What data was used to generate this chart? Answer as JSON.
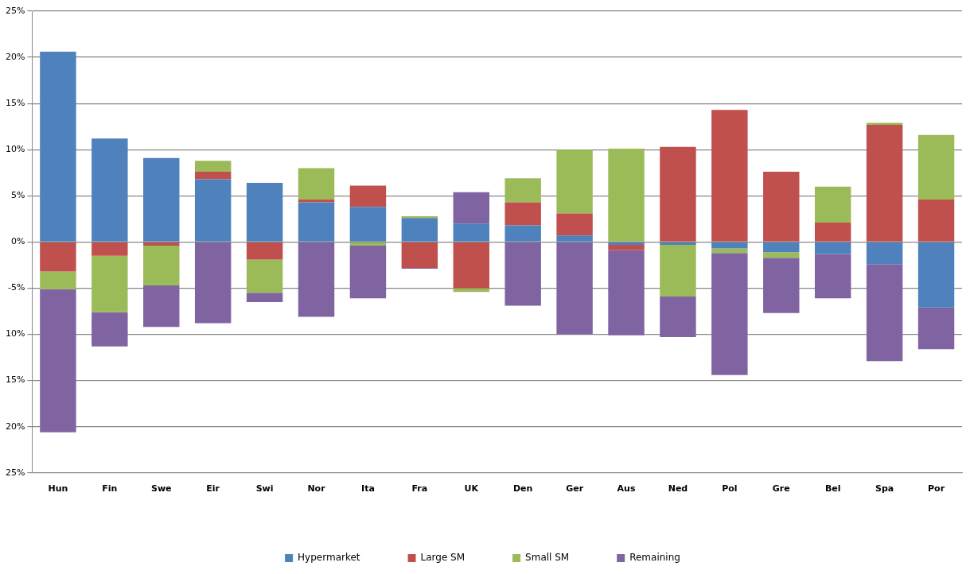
{
  "chart_data": {
    "type": "bar",
    "stacked": true,
    "categories": [
      "Hun",
      "Fin",
      "Swe",
      "Eir",
      "Swi",
      "Nor",
      "Ita",
      "Fra",
      "UK",
      "Den",
      "Ger",
      "Aus",
      "Ned",
      "Pol",
      "Gre",
      "Bel",
      "Spa",
      "Por"
    ],
    "series": [
      {
        "name": "Hypermarket",
        "color": "#4f81bd",
        "values": [
          20.6,
          11.2,
          9.1,
          6.8,
          6.4,
          4.3,
          3.8,
          2.6,
          2.0,
          1.8,
          0.7,
          -0.3,
          -0.3,
          -0.7,
          -1.1,
          -1.3,
          -2.4,
          -7.1
        ]
      },
      {
        "name": "Large SM",
        "color": "#c0504d",
        "values": [
          -3.2,
          -1.5,
          -0.4,
          0.8,
          -1.9,
          0.3,
          2.3,
          -2.8,
          -5.0,
          2.5,
          2.4,
          -0.6,
          10.3,
          14.3,
          7.6,
          2.1,
          12.7,
          4.6
        ]
      },
      {
        "name": "Small SM",
        "color": "#9bbb59",
        "values": [
          -1.9,
          -6.1,
          -4.3,
          1.2,
          -3.6,
          3.4,
          -0.4,
          0.2,
          -0.4,
          2.6,
          6.9,
          10.1,
          -5.6,
          -0.5,
          -0.6,
          3.9,
          0.2,
          7.0
        ]
      },
      {
        "name": "Remaining",
        "color": "#8064a2",
        "values": [
          -15.5,
          -3.7,
          -4.5,
          -8.8,
          -1.0,
          -8.1,
          -5.7,
          -0.1,
          3.4,
          -6.9,
          -10.0,
          -9.2,
          -4.4,
          -13.2,
          -6.0,
          -4.8,
          -10.5,
          -4.5
        ]
      }
    ],
    "ylim": [
      -25,
      25
    ],
    "yticks": [
      {
        "value": 25,
        "label": "25%"
      },
      {
        "value": 20,
        "label": "20%"
      },
      {
        "value": 15,
        "label": "15%"
      },
      {
        "value": 10,
        "label": "10%"
      },
      {
        "value": 5,
        "label": "5%"
      },
      {
        "value": 0,
        "label": "0%"
      },
      {
        "value": -5,
        "label": "-5%"
      },
      {
        "value": -10,
        "label": "10%"
      },
      {
        "value": -15,
        "label": "15%"
      },
      {
        "value": -20,
        "label": "20%"
      },
      {
        "value": -25,
        "label": "25%"
      }
    ],
    "grid": "y",
    "legend": "bottom"
  }
}
